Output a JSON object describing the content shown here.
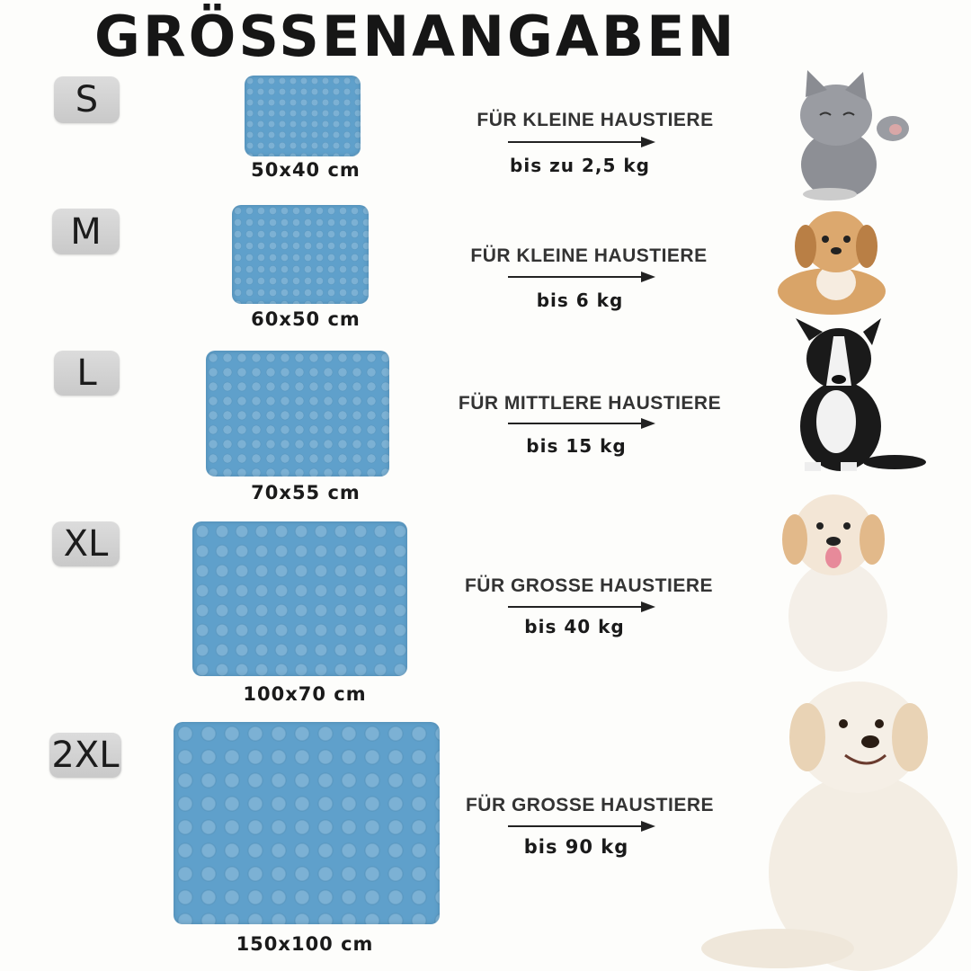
{
  "title": "GRÖSSENANGABEN",
  "mat_color": "#5fa0cb",
  "sizes": [
    {
      "label": "S",
      "dimensions": "50x40 cm",
      "pet_type": "FÜR KLEINE HAUSTIERE",
      "weight": "bis zu 2,5 kg",
      "animal": "kitten-image"
    },
    {
      "label": "M",
      "dimensions": "60x50 cm",
      "pet_type": "FÜR KLEINE HAUSTIERE",
      "weight": "bis 6 kg",
      "animal": "puppy-image"
    },
    {
      "label": "L",
      "dimensions": "70x55 cm",
      "pet_type": "FÜR MITTLERE HAUSTIERE",
      "weight": "bis 15 kg",
      "animal": "border-collie-image"
    },
    {
      "label": "XL",
      "dimensions": "100x70 cm",
      "pet_type": "FÜR GROSSE HAUSTIERE",
      "weight": "bis 40 kg",
      "animal": "golden-puppy-image"
    },
    {
      "label": "2XL",
      "dimensions": "150x100 cm",
      "pet_type": "FÜR GROSSE HAUSTIERE",
      "weight": "bis 90 kg",
      "animal": "golden-retriever-image"
    }
  ]
}
